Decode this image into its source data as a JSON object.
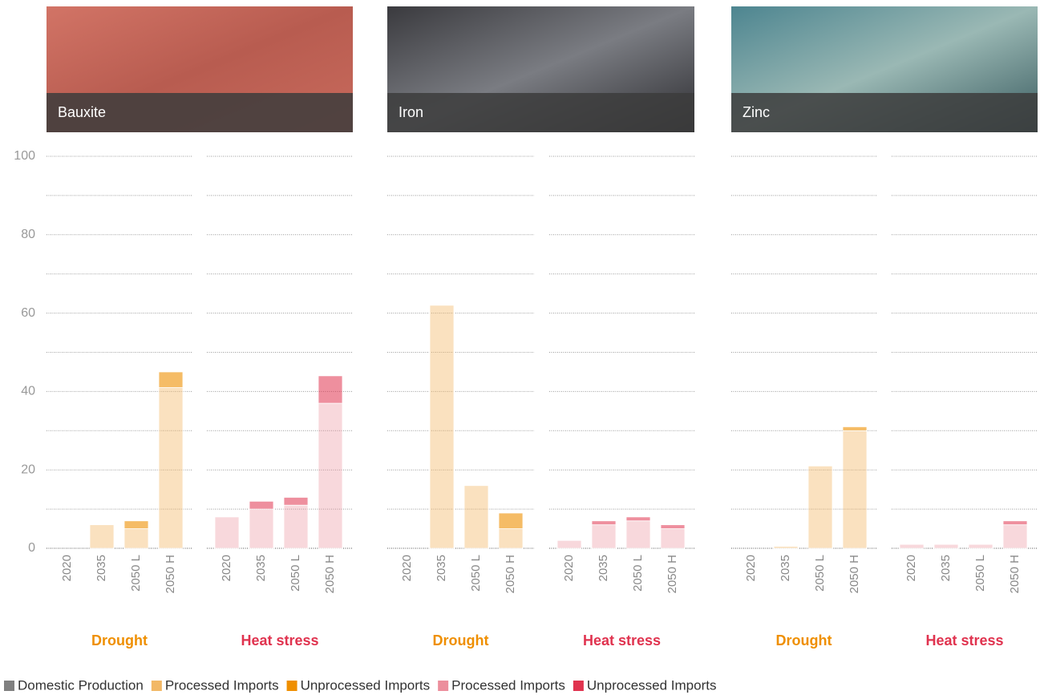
{
  "chart_data": [
    {
      "type": "bar",
      "stacked": true,
      "title": "Bauxite",
      "subtitle": "Drought",
      "categories": [
        "2020",
        "2035",
        "2050 L",
        "2050 H"
      ],
      "ylim": [
        0,
        100
      ],
      "yticks": [
        0,
        20,
        40,
        60,
        80,
        100
      ],
      "minor_yticks": [
        10,
        30,
        50,
        70,
        90
      ],
      "grid": true,
      "series": [
        {
          "name": "Domestic Production",
          "color": "#808080",
          "values": [
            0,
            0,
            0,
            0
          ]
        },
        {
          "name": "Processed Imports",
          "color": "#f2b866",
          "values": [
            0,
            6,
            5,
            41
          ]
        },
        {
          "name": "Unprocessed Imports",
          "color": "#ef8f00",
          "values": [
            0,
            0,
            2,
            4
          ]
        }
      ]
    },
    {
      "type": "bar",
      "stacked": true,
      "subtitle": "Heat stress",
      "categories": [
        "2020",
        "2035",
        "2050 L",
        "2050 H"
      ],
      "ylim": [
        0,
        100
      ],
      "series": [
        {
          "name": "Domestic Production",
          "color": "#808080",
          "values": [
            0,
            0,
            0,
            0
          ]
        },
        {
          "name": "Processed Imports",
          "color": "#ec8e9c",
          "values": [
            8,
            10,
            11,
            37
          ]
        },
        {
          "name": "Unprocessed Imports",
          "color": "#e0334f",
          "values": [
            0,
            2,
            2,
            7
          ]
        }
      ]
    },
    {
      "type": "bar",
      "stacked": true,
      "title": "Iron",
      "subtitle": "Drought",
      "categories": [
        "2020",
        "2035",
        "2050 L",
        "2050 H"
      ],
      "ylim": [
        0,
        100
      ],
      "series": [
        {
          "name": "Domestic Production",
          "color": "#808080",
          "values": [
            0,
            0,
            0,
            0
          ]
        },
        {
          "name": "Processed Imports",
          "color": "#f2b866",
          "values": [
            0,
            62,
            16,
            5
          ]
        },
        {
          "name": "Unprocessed Imports",
          "color": "#ef8f00",
          "values": [
            0,
            0,
            0,
            4
          ]
        }
      ]
    },
    {
      "type": "bar",
      "stacked": true,
      "subtitle": "Heat stress",
      "categories": [
        "2020",
        "2035",
        "2050 L",
        "2050 H"
      ],
      "ylim": [
        0,
        100
      ],
      "series": [
        {
          "name": "Domestic Production",
          "color": "#808080",
          "values": [
            0,
            0,
            0,
            0
          ]
        },
        {
          "name": "Processed Imports",
          "color": "#ec8e9c",
          "values": [
            2,
            6,
            7,
            5
          ]
        },
        {
          "name": "Unprocessed Imports",
          "color": "#e0334f",
          "values": [
            0,
            1,
            1,
            1
          ]
        }
      ]
    },
    {
      "type": "bar",
      "stacked": true,
      "title": "Zinc",
      "subtitle": "Drought",
      "categories": [
        "2020",
        "2035",
        "2050 L",
        "2050 H"
      ],
      "ylim": [
        0,
        100
      ],
      "series": [
        {
          "name": "Domestic Production",
          "color": "#808080",
          "values": [
            0,
            0,
            0,
            0
          ]
        },
        {
          "name": "Processed Imports",
          "color": "#f2b866",
          "values": [
            0,
            0.5,
            21,
            30
          ]
        },
        {
          "name": "Unprocessed Imports",
          "color": "#ef8f00",
          "values": [
            0,
            0,
            0,
            1
          ]
        }
      ]
    },
    {
      "type": "bar",
      "stacked": true,
      "subtitle": "Heat stress",
      "categories": [
        "2020",
        "2035",
        "2050 L",
        "2050 H"
      ],
      "ylim": [
        0,
        100
      ],
      "series": [
        {
          "name": "Domestic Production",
          "color": "#808080",
          "values": [
            0,
            0,
            0,
            0
          ]
        },
        {
          "name": "Processed Imports",
          "color": "#ec8e9c",
          "values": [
            1,
            1,
            1,
            6
          ]
        },
        {
          "name": "Unprocessed Imports",
          "color": "#e0334f",
          "values": [
            0,
            0,
            0,
            1
          ]
        }
      ]
    }
  ]
}
